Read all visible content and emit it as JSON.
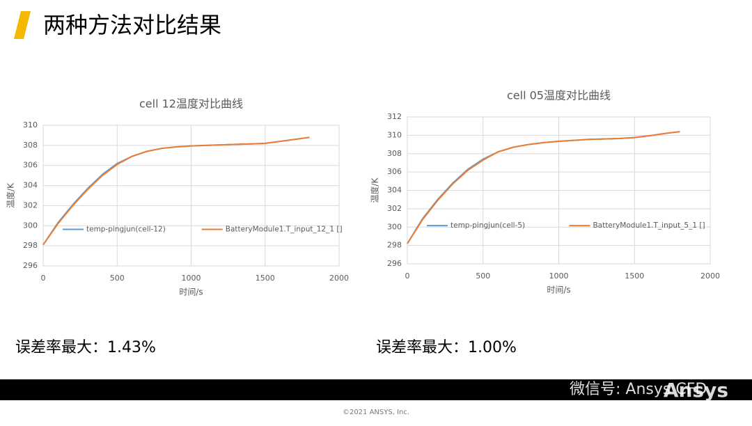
{
  "header": {
    "title": "两种方法对比结果"
  },
  "chart_data": [
    {
      "type": "line",
      "title": "cell 12温度对比曲线",
      "x_label": "时间/s",
      "y_label": "温度/K",
      "x": [
        0,
        100,
        200,
        300,
        400,
        500,
        600,
        700,
        800,
        900,
        1000,
        1100,
        1200,
        1300,
        1400,
        1500,
        1600,
        1700,
        1800
      ],
      "series": [
        {
          "name": "temp-pingjun(cell-12)",
          "color": "#5b9bd5",
          "values": [
            298.1,
            300.3,
            302.1,
            303.7,
            305.1,
            306.2,
            306.9,
            307.4,
            307.7,
            307.85,
            307.95,
            308.0,
            308.05,
            308.1,
            308.15,
            308.2,
            308.4,
            308.6,
            308.8
          ]
        },
        {
          "name": "BatteryModule1.T_input_12_1 []",
          "color": "#ed7d31",
          "values": [
            298.1,
            300.2,
            302.0,
            303.6,
            305.0,
            306.1,
            306.9,
            307.4,
            307.7,
            307.85,
            307.95,
            308.0,
            308.05,
            308.1,
            308.15,
            308.2,
            308.4,
            308.6,
            308.8
          ]
        }
      ],
      "xlim": [
        0,
        2000
      ],
      "xticks": [
        0,
        500,
        1000,
        1500,
        2000
      ],
      "ylim": [
        296,
        310
      ],
      "yticks": [
        296,
        298,
        300,
        302,
        304,
        306,
        308,
        310
      ],
      "grid": true,
      "legend": "bottom"
    },
    {
      "type": "line",
      "title": "cell 05温度对比曲线",
      "x_label": "时间/s",
      "y_label": "温度/K",
      "x": [
        0,
        100,
        200,
        300,
        400,
        500,
        600,
        700,
        800,
        900,
        1000,
        1100,
        1200,
        1300,
        1400,
        1500,
        1600,
        1700,
        1800
      ],
      "series": [
        {
          "name": "temp-pingjun(cell-5)",
          "color": "#5b9bd5",
          "values": [
            298.2,
            300.9,
            303.0,
            304.8,
            306.3,
            307.4,
            308.2,
            308.7,
            309.0,
            309.2,
            309.35,
            309.45,
            309.55,
            309.6,
            309.65,
            309.75,
            309.95,
            310.2,
            310.4
          ]
        },
        {
          "name": "BatteryModule1.T_input_5_1 []",
          "color": "#ed7d31",
          "values": [
            298.2,
            300.8,
            302.9,
            304.7,
            306.2,
            307.3,
            308.2,
            308.7,
            309.0,
            309.2,
            309.35,
            309.45,
            309.55,
            309.6,
            309.65,
            309.75,
            309.95,
            310.2,
            310.4
          ]
        }
      ],
      "xlim": [
        0,
        2000
      ],
      "xticks": [
        0,
        500,
        1000,
        1500,
        2000
      ],
      "ylim": [
        296,
        312
      ],
      "yticks": [
        296,
        298,
        300,
        302,
        304,
        306,
        308,
        310,
        312
      ],
      "grid": true,
      "legend": "bottom"
    }
  ],
  "notes": [
    "误差率最大：1.43%",
    "误差率最大：1.00%"
  ],
  "watermark": "微信号: Ansys CFD",
  "logo": "Ansys",
  "footer": "©2021 ANSYS, Inc."
}
